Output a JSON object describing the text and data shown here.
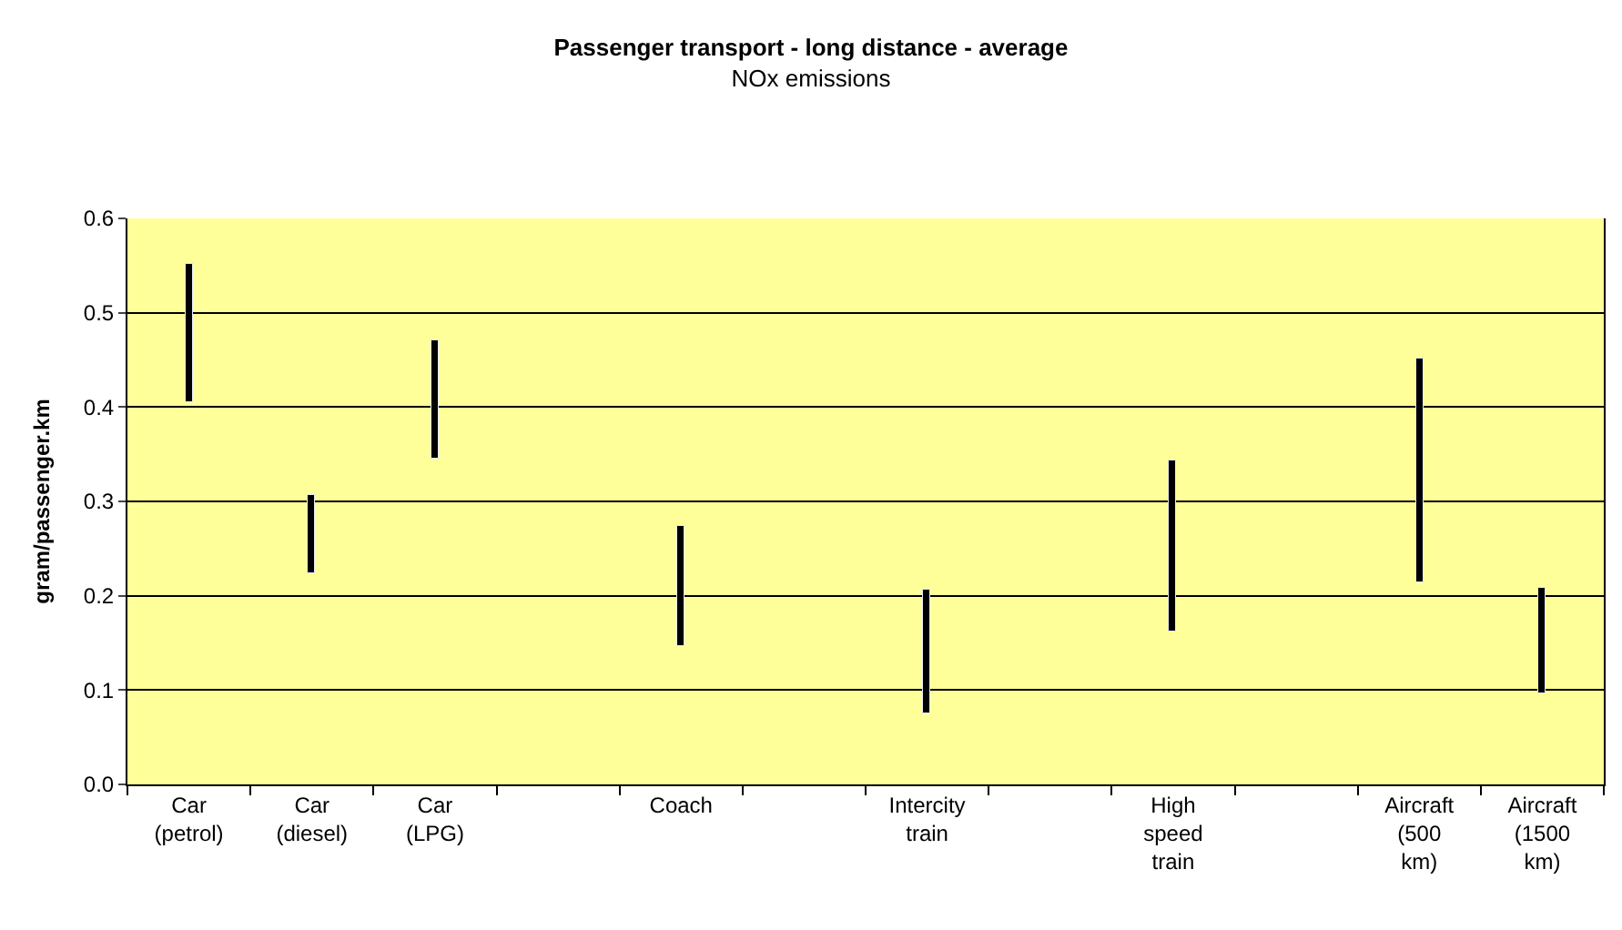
{
  "chart_data": {
    "type": "bar",
    "title": "Passenger transport - long distance - average",
    "subtitle": "NOx emissions",
    "ylabel": "gram/passenger.km",
    "categories": [
      "Car (petrol)",
      "Car (diesel)",
      "Car (LPG)",
      null,
      "Coach",
      null,
      "Intercity train",
      null,
      "High speed train",
      null,
      "Aircraft (500 km)",
      "Aircraft (1500 km)"
    ],
    "base": [
      0.405,
      0.224,
      0.345,
      null,
      0.147,
      null,
      0.075,
      null,
      0.163,
      null,
      0.214,
      0.097
    ],
    "values": [
      0.146,
      0.082,
      0.125,
      null,
      0.127,
      null,
      0.131,
      null,
      0.18,
      null,
      0.237,
      0.112
    ],
    "color": "#000000",
    "ylim": [
      0,
      0.6
    ],
    "yticks": [
      {
        "value": 0,
        "label": "0.0"
      },
      0.1,
      0.2,
      0.3,
      0.4,
      0.5,
      0.6
    ],
    "grid": "y"
  }
}
